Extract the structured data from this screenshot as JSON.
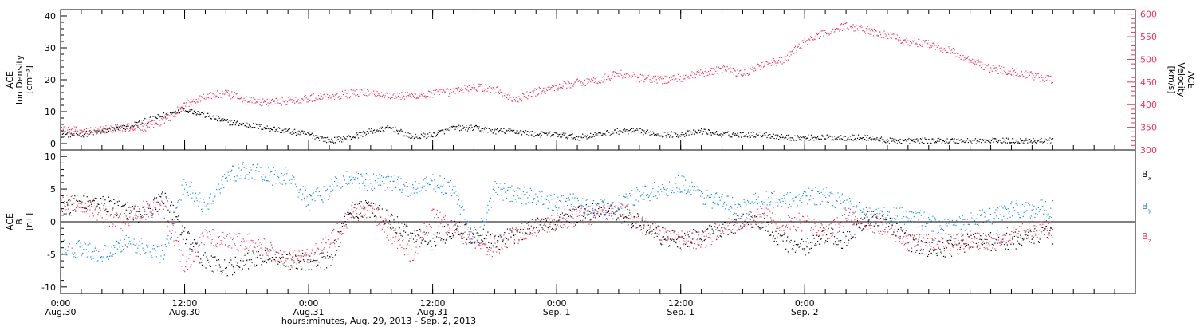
{
  "chart_data": [
    {
      "type": "scatter",
      "panel": "ion-density-velocity",
      "ylabel_lines": [
        "ACE",
        "Ion Density",
        "[cm⁻³]"
      ],
      "y2label_lines": [
        "ACE",
        "Velocity",
        "[km/s]"
      ],
      "ylim": [
        -2,
        42
      ],
      "yticks": [
        0,
        10,
        20,
        30,
        40
      ],
      "y2lim": [
        300,
        610
      ],
      "y2ticks": [
        300,
        350,
        400,
        450,
        500,
        550,
        600
      ],
      "series": [
        {
          "axis": "left",
          "color": "#000000",
          "x": [
            0,
            2,
            4,
            6,
            8,
            10,
            12,
            14,
            16,
            18,
            20,
            22,
            24,
            26,
            28,
            30,
            32,
            34,
            36,
            38,
            40,
            42,
            44,
            46,
            48,
            50,
            52,
            54,
            56,
            58,
            60,
            62,
            64,
            66,
            68,
            70,
            72,
            74,
            76,
            78,
            80,
            82,
            84,
            86,
            88,
            90,
            92,
            94,
            96
          ],
          "y": [
            3,
            3,
            4,
            5,
            7,
            9,
            11,
            9,
            7,
            6,
            5,
            4,
            3,
            1,
            2,
            4,
            5,
            2,
            3,
            5,
            5,
            4,
            4,
            3,
            3,
            2,
            3,
            4,
            4,
            3,
            3,
            4,
            3,
            3,
            3,
            2,
            2,
            2,
            2,
            2,
            1,
            1,
            1,
            1,
            1,
            1,
            1,
            1,
            1
          ]
        },
        {
          "axis": "right",
          "color": "#e8355e",
          "x": [
            0,
            2,
            4,
            6,
            8,
            10,
            12,
            14,
            16,
            18,
            20,
            22,
            24,
            26,
            28,
            30,
            32,
            34,
            36,
            38,
            40,
            42,
            44,
            46,
            48,
            50,
            52,
            54,
            56,
            58,
            60,
            62,
            64,
            66,
            68,
            70,
            72,
            74,
            76,
            78,
            80,
            82,
            84,
            86,
            88,
            90,
            92,
            94,
            96
          ],
          "y": [
            350,
            340,
            345,
            350,
            350,
            365,
            400,
            420,
            425,
            410,
            405,
            410,
            415,
            420,
            425,
            430,
            420,
            420,
            425,
            430,
            440,
            435,
            410,
            430,
            440,
            450,
            455,
            470,
            460,
            455,
            460,
            470,
            480,
            470,
            490,
            500,
            540,
            560,
            575,
            565,
            555,
            540,
            535,
            520,
            500,
            480,
            475,
            465,
            455
          ]
        }
      ]
    },
    {
      "type": "scatter",
      "panel": "magnetic-field",
      "ylabel_lines": [
        "ACE",
        "B",
        "[nT]"
      ],
      "ylim": [
        -11,
        11
      ],
      "yticks": [
        -10,
        -5,
        0,
        5,
        10
      ],
      "zero_line": true,
      "series": [
        {
          "name": "B",
          "sub": "x",
          "color": "#000000",
          "x": [
            0,
            2,
            4,
            6,
            8,
            10,
            12,
            14,
            16,
            18,
            20,
            22,
            24,
            26,
            28,
            30,
            32,
            34,
            36,
            38,
            40,
            42,
            44,
            46,
            48,
            50,
            52,
            54,
            56,
            58,
            60,
            62,
            64,
            66,
            68,
            70,
            72,
            74,
            76,
            78,
            80,
            82,
            84,
            86,
            88,
            90,
            92,
            94,
            96
          ],
          "y": [
            2,
            3,
            3,
            2,
            1,
            4,
            -2,
            -6,
            -7,
            -6,
            -5,
            -6,
            -6,
            -6,
            2,
            2,
            0,
            -2,
            -3,
            -1,
            -2,
            -3,
            -2,
            0,
            0,
            1,
            2,
            1,
            0,
            -2,
            -3,
            -2,
            -1,
            0,
            0,
            -3,
            -4,
            -2,
            -3,
            1,
            0,
            -3,
            -4,
            -4,
            -3,
            -3,
            -3,
            -2,
            -2
          ]
        },
        {
          "name": "B",
          "sub": "y",
          "color": "#1e88e5",
          "x": [
            0,
            2,
            4,
            6,
            8,
            10,
            12,
            14,
            16,
            18,
            20,
            22,
            24,
            26,
            28,
            30,
            32,
            34,
            36,
            38,
            40,
            42,
            44,
            46,
            48,
            50,
            52,
            54,
            56,
            58,
            60,
            62,
            64,
            66,
            68,
            70,
            72,
            74,
            76,
            78,
            80,
            82,
            84,
            86,
            88,
            90,
            92,
            94,
            96
          ],
          "y": [
            -4,
            -4,
            -5,
            -3,
            -4,
            -5,
            6,
            2,
            7,
            8,
            7,
            7,
            3,
            5,
            7,
            6,
            6,
            5,
            6,
            5,
            -3,
            5,
            4,
            4,
            3,
            3,
            2,
            3,
            4,
            5,
            6,
            4,
            3,
            2,
            4,
            3,
            4,
            4,
            3,
            1,
            1,
            1,
            0,
            -1,
            0,
            1,
            2,
            2,
            2
          ]
        },
        {
          "name": "B",
          "sub": "z",
          "color": "#e8355e",
          "x": [
            0,
            2,
            4,
            6,
            8,
            10,
            12,
            14,
            16,
            18,
            20,
            22,
            24,
            26,
            28,
            30,
            32,
            34,
            36,
            38,
            40,
            42,
            44,
            46,
            48,
            50,
            52,
            54,
            56,
            58,
            60,
            62,
            64,
            66,
            68,
            70,
            72,
            74,
            76,
            78,
            80,
            82,
            84,
            86,
            88,
            90,
            92,
            94,
            96
          ],
          "y": [
            3,
            3,
            1,
            0,
            2,
            2,
            -7,
            -2,
            -3,
            -3,
            -4,
            -6,
            -5,
            -3,
            1,
            2,
            -2,
            -5,
            1,
            -1,
            -3,
            -4,
            -2,
            -1,
            0,
            1,
            1,
            2,
            0,
            -2,
            -2,
            -3,
            -1,
            0,
            1,
            0,
            0,
            -2,
            1,
            0,
            -1,
            -3,
            -3,
            -3,
            -3,
            -3,
            -2,
            -1,
            -1
          ]
        }
      ]
    }
  ],
  "x_axis": {
    "range_hours": [
      0,
      104
    ],
    "minor_tick_hours": 2,
    "major_ticks": [
      {
        "hour": 0,
        "time": "0:00",
        "date": "Aug.30"
      },
      {
        "hour": 12,
        "time": "12:00",
        "date": "Aug.30"
      },
      {
        "hour": 24,
        "time": "0:00",
        "date": "Aug.31"
      },
      {
        "hour": 36,
        "time": "12:00",
        "date": "Aug.31"
      },
      {
        "hour": 48,
        "time": "0:00",
        "date": "Sep. 1"
      },
      {
        "hour": 60,
        "time": "12:00",
        "date": "Sep. 1"
      },
      {
        "hour": 72,
        "time": "0:00",
        "date": "Sep. 2"
      }
    ],
    "label": "hours:minutes, Aug. 29, 2013 - Sep.  2, 2013"
  }
}
